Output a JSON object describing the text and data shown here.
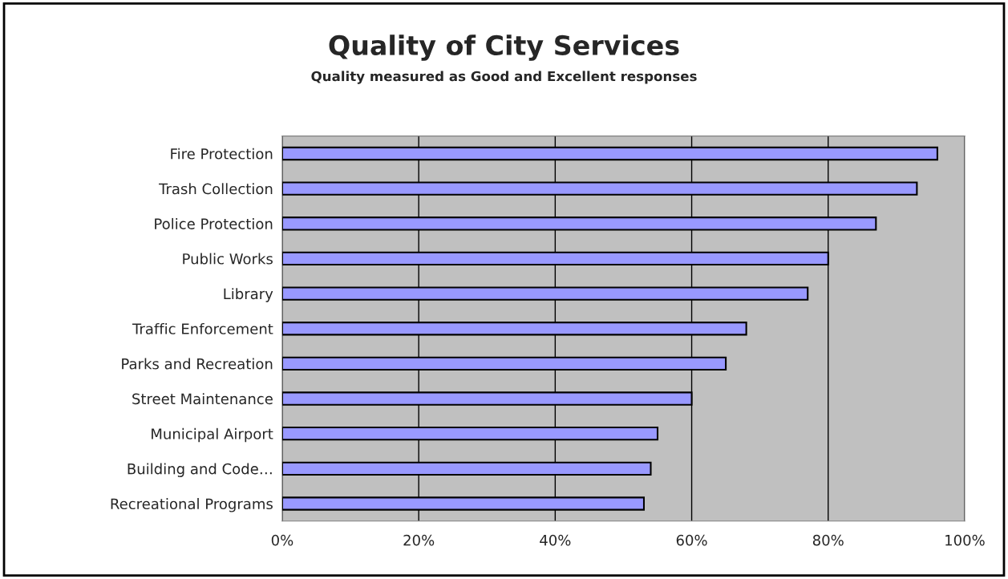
{
  "chart_data": {
    "type": "bar",
    "orientation": "horizontal",
    "title": "Quality of City Services",
    "subtitle": "Quality measured as Good and Excellent responses",
    "categories": [
      "Fire Protection",
      "Trash Collection",
      "Police Protection",
      "Public Works",
      "Library",
      "Traffic Enforcement",
      "Parks and Recreation",
      "Street Maintenance",
      "Municipal Airport",
      "Building and Code…",
      "Recreational Programs"
    ],
    "values": [
      96,
      93,
      87,
      80,
      77,
      68,
      65,
      60,
      55,
      54,
      53
    ],
    "color": "#9999ff",
    "xlim": [
      0,
      100
    ],
    "xticks": [
      {
        "value": 0,
        "label": "0%"
      },
      {
        "value": 20,
        "label": "20%"
      },
      {
        "value": 40,
        "label": "40%"
      },
      {
        "value": 60,
        "label": "60%"
      },
      {
        "value": 80,
        "label": "80%"
      },
      {
        "value": 100,
        "label": "100%"
      }
    ],
    "grid": "x"
  }
}
